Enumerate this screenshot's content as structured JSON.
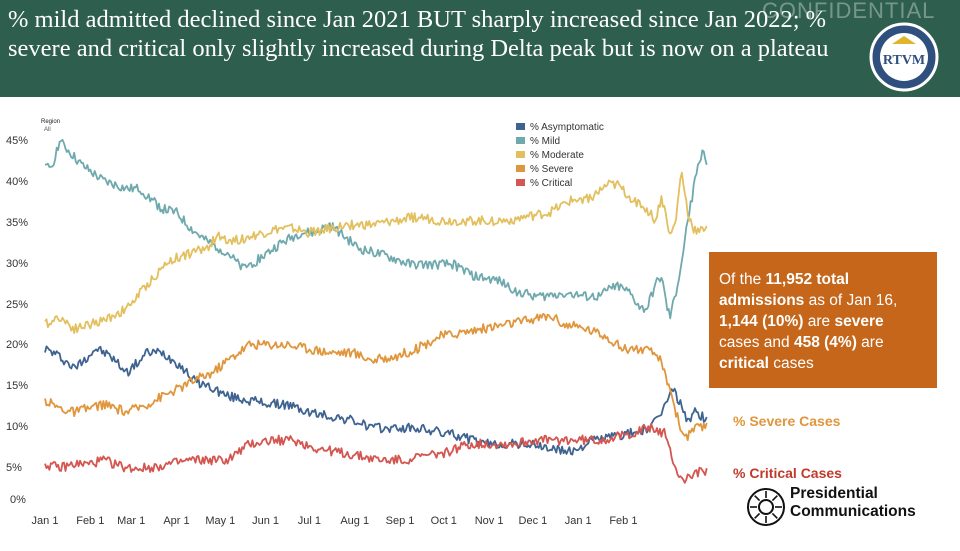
{
  "header": {
    "title": "% mild admitted declined since Jan 2021 BUT sharply increased since Jan 2022; % severe and critical only slightly increased during Delta peak but is now on a plateau",
    "watermark": "CONFIDENTIAL",
    "seal_text": "RTVM",
    "background": "#2e5e4e"
  },
  "chart_data": {
    "type": "line",
    "x_tick_labels": [
      "Jan 1",
      "Feb 1",
      "Mar 1",
      "Apr 1",
      "May 1",
      "Jun 1",
      "Jul 1",
      "Aug 1",
      "Sep 1",
      "Oct 1",
      "Nov 1",
      "Dec 1",
      "Jan 1",
      "Feb 1"
    ],
    "y_tick_labels": [
      "0%",
      "5%",
      "10%",
      "15%",
      "20%",
      "25%",
      "30%",
      "35%",
      "40%",
      "45%"
    ],
    "ylim": [
      0,
      45
    ],
    "grid": false,
    "region_label": "Region",
    "region_value": "All",
    "legend_position": "top-center",
    "series": [
      {
        "name": "% Asymptomatic",
        "color": "#3f6390",
        "points": [
          [
            0,
            19
          ],
          [
            10,
            18
          ],
          [
            20,
            16.5
          ],
          [
            35,
            19
          ],
          [
            45,
            18
          ],
          [
            56,
            16
          ],
          [
            65,
            17.5
          ],
          [
            70,
            18.5
          ],
          [
            80,
            18.5
          ],
          [
            92,
            17
          ],
          [
            102,
            15
          ],
          [
            115,
            14
          ],
          [
            125,
            13
          ],
          [
            140,
            12.5
          ],
          [
            155,
            12
          ],
          [
            165,
            12
          ],
          [
            180,
            11
          ],
          [
            195,
            10.5
          ],
          [
            210,
            10
          ],
          [
            225,
            9
          ],
          [
            240,
            9
          ],
          [
            255,
            9
          ],
          [
            270,
            8.5
          ],
          [
            285,
            8
          ],
          [
            300,
            7
          ],
          [
            315,
            7
          ],
          [
            330,
            7
          ],
          [
            345,
            6.5
          ],
          [
            360,
            6
          ],
          [
            375,
            7.5
          ],
          [
            390,
            8
          ],
          [
            405,
            8.5
          ],
          [
            415,
            9
          ],
          [
            425,
            12
          ],
          [
            430,
            14
          ],
          [
            435,
            12
          ],
          [
            440,
            10
          ],
          [
            445,
            11
          ],
          [
            450,
            10.5
          ],
          [
            453,
            10
          ]
        ]
      },
      {
        "name": "% Mild",
        "color": "#6fa9ad",
        "points": [
          [
            0,
            41.5
          ],
          [
            5,
            42
          ],
          [
            10,
            45
          ],
          [
            15,
            44
          ],
          [
            25,
            42
          ],
          [
            40,
            40
          ],
          [
            56,
            39
          ],
          [
            65,
            39
          ],
          [
            80,
            36.5
          ],
          [
            90,
            36
          ],
          [
            100,
            34
          ],
          [
            110,
            32.5
          ],
          [
            125,
            31
          ],
          [
            135,
            29
          ],
          [
            145,
            30
          ],
          [
            160,
            32
          ],
          [
            175,
            33.5
          ],
          [
            185,
            33.5
          ],
          [
            195,
            34.5
          ],
          [
            205,
            33
          ],
          [
            215,
            31.5
          ],
          [
            225,
            31
          ],
          [
            235,
            30.5
          ],
          [
            250,
            29.5
          ],
          [
            265,
            29.5
          ],
          [
            280,
            29.5
          ],
          [
            295,
            28
          ],
          [
            310,
            27.5
          ],
          [
            325,
            26
          ],
          [
            340,
            25.5
          ],
          [
            355,
            26
          ],
          [
            370,
            25.5
          ],
          [
            380,
            25.5
          ],
          [
            390,
            27
          ],
          [
            400,
            26
          ],
          [
            408,
            24
          ],
          [
            412,
            24
          ],
          [
            418,
            27
          ],
          [
            422,
            28
          ],
          [
            426,
            24
          ],
          [
            428,
            23
          ],
          [
            432,
            26
          ],
          [
            436,
            30
          ],
          [
            440,
            35
          ],
          [
            446,
            41
          ],
          [
            450,
            44
          ],
          [
            453,
            42.5
          ]
        ]
      },
      {
        "name": "% Moderate",
        "color": "#e3c05f",
        "points": [
          [
            0,
            22
          ],
          [
            10,
            23
          ],
          [
            20,
            21.5
          ],
          [
            30,
            22
          ],
          [
            40,
            22.5
          ],
          [
            56,
            24
          ],
          [
            70,
            27
          ],
          [
            85,
            30
          ],
          [
            100,
            31
          ],
          [
            110,
            31.5
          ],
          [
            118,
            33
          ],
          [
            130,
            32.5
          ],
          [
            140,
            33
          ],
          [
            150,
            33.5
          ],
          [
            160,
            34
          ],
          [
            170,
            34
          ],
          [
            180,
            33.5
          ],
          [
            195,
            34
          ],
          [
            210,
            34.5
          ],
          [
            225,
            34.5
          ],
          [
            240,
            35
          ],
          [
            255,
            35.5
          ],
          [
            270,
            35
          ],
          [
            285,
            35
          ],
          [
            300,
            35
          ],
          [
            315,
            35
          ],
          [
            330,
            35.5
          ],
          [
            345,
            36
          ],
          [
            360,
            37.5
          ],
          [
            375,
            38
          ],
          [
            385,
            39.5
          ],
          [
            392,
            39.5
          ],
          [
            400,
            38
          ],
          [
            408,
            37
          ],
          [
            414,
            36
          ],
          [
            418,
            35
          ],
          [
            422,
            38
          ],
          [
            426,
            35
          ],
          [
            428,
            33
          ],
          [
            432,
            35
          ],
          [
            434,
            39
          ],
          [
            436,
            41
          ],
          [
            440,
            36
          ],
          [
            444,
            34
          ],
          [
            448,
            33.5
          ],
          [
            451,
            34
          ],
          [
            453,
            34.5
          ]
        ]
      },
      {
        "name": "% Severe",
        "color": "#e0963c",
        "points": [
          [
            0,
            12.5
          ],
          [
            10,
            11.5
          ],
          [
            20,
            11
          ],
          [
            30,
            11.5
          ],
          [
            40,
            12
          ],
          [
            56,
            11
          ],
          [
            70,
            12
          ],
          [
            80,
            13
          ],
          [
            92,
            14
          ],
          [
            102,
            15
          ],
          [
            115,
            16
          ],
          [
            125,
            17.5
          ],
          [
            140,
            19.5
          ],
          [
            155,
            19.5
          ],
          [
            165,
            19.5
          ],
          [
            180,
            19
          ],
          [
            195,
            18.5
          ],
          [
            210,
            18.5
          ],
          [
            225,
            17.5
          ],
          [
            240,
            18
          ],
          [
            255,
            19
          ],
          [
            270,
            20.5
          ],
          [
            285,
            21
          ],
          [
            300,
            21.5
          ],
          [
            315,
            22
          ],
          [
            330,
            22.5
          ],
          [
            342,
            23
          ],
          [
            348,
            23
          ],
          [
            355,
            22
          ],
          [
            370,
            21.5
          ],
          [
            385,
            20.5
          ],
          [
            395,
            19
          ],
          [
            405,
            19
          ],
          [
            415,
            18.5
          ],
          [
            420,
            18
          ],
          [
            424,
            16
          ],
          [
            428,
            14
          ],
          [
            432,
            11
          ],
          [
            436,
            8.5
          ],
          [
            440,
            8
          ],
          [
            445,
            9
          ],
          [
            450,
            9
          ],
          [
            453,
            9.5
          ]
        ]
      },
      {
        "name": "% Critical",
        "color": "#d45650",
        "points": [
          [
            0,
            4.5
          ],
          [
            10,
            4
          ],
          [
            20,
            4.5
          ],
          [
            30,
            4.5
          ],
          [
            40,
            5
          ],
          [
            56,
            4
          ],
          [
            70,
            4
          ],
          [
            85,
            4.5
          ],
          [
            100,
            5
          ],
          [
            115,
            5
          ],
          [
            125,
            5
          ],
          [
            140,
            7
          ],
          [
            155,
            7.5
          ],
          [
            170,
            7.5
          ],
          [
            185,
            6.5
          ],
          [
            200,
            6
          ],
          [
            215,
            5.5
          ],
          [
            230,
            5
          ],
          [
            245,
            5
          ],
          [
            260,
            5.5
          ],
          [
            275,
            6
          ],
          [
            290,
            7
          ],
          [
            305,
            7
          ],
          [
            320,
            7
          ],
          [
            335,
            7.5
          ],
          [
            350,
            7.5
          ],
          [
            365,
            7.5
          ],
          [
            380,
            7.5
          ],
          [
            395,
            8
          ],
          [
            405,
            8.5
          ],
          [
            412,
            9
          ],
          [
            416,
            9
          ],
          [
            420,
            8.5
          ],
          [
            424,
            8.5
          ],
          [
            426,
            7
          ],
          [
            430,
            5
          ],
          [
            434,
            3
          ],
          [
            438,
            2.5
          ],
          [
            442,
            3
          ],
          [
            446,
            3.5
          ],
          [
            450,
            3.5
          ],
          [
            453,
            3.5
          ]
        ]
      }
    ],
    "x_domain": [
      0,
      471
    ],
    "x_tick_days": [
      0,
      31,
      59,
      90,
      120,
      151,
      181,
      212,
      243,
      273,
      304,
      334,
      365,
      396
    ]
  },
  "callout": {
    "line1_prefix": "Of the ",
    "line1_bold": "11,952 total",
    "line2_bold": "admissions",
    "line2_rest": " as of Jan 16,",
    "line3_bold": "1,144 (10%)",
    "line3_mid": " are ",
    "line3_bold2": "severe",
    "line4_prefix": "cases and ",
    "line4_bold": "458 (4%)",
    "line4_rest": " are",
    "line5_bold": "critical",
    "line5_rest": " cases",
    "background": "#c5661a"
  },
  "side_labels": {
    "severe": "% Severe Cases",
    "critical": "% Critical Cases"
  },
  "footer": {
    "line1": "Presidential",
    "line2": "Communications"
  }
}
